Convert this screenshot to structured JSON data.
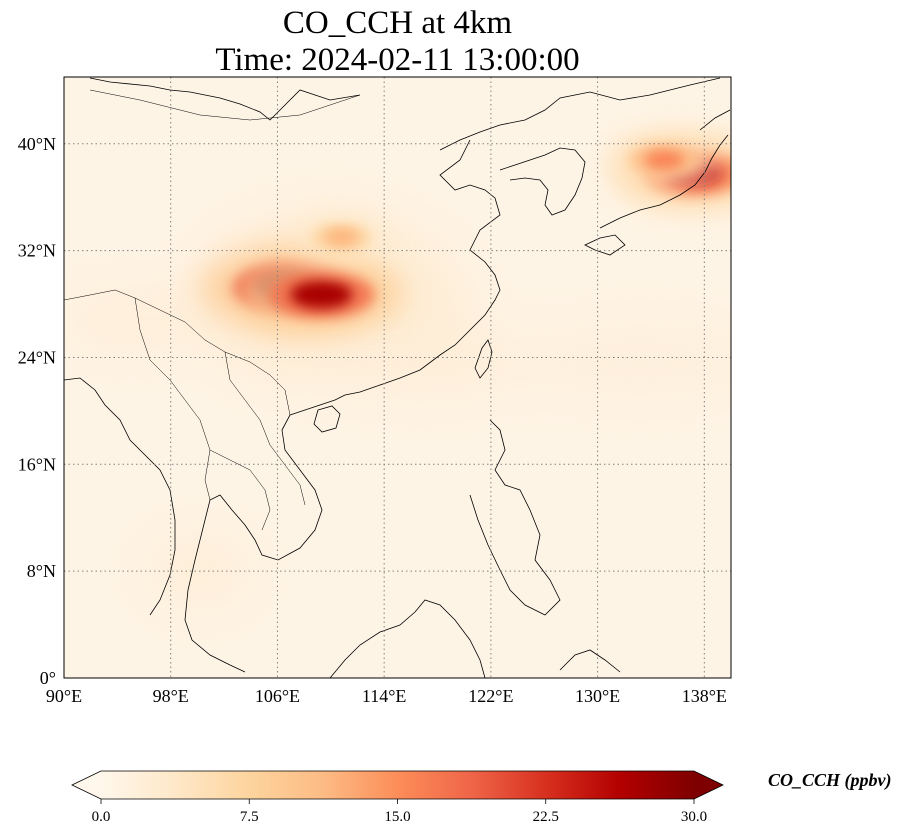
{
  "title": {
    "line1": "CO_CCH at 4km",
    "line2": "Time: 2024-02-11 13:00:00"
  },
  "map": {
    "lon_range": [
      90,
      140
    ],
    "lat_range": [
      0,
      45
    ],
    "lon_ticks": [
      {
        "value": 90,
        "label": "90°E"
      },
      {
        "value": 98,
        "label": "98°E"
      },
      {
        "value": 106,
        "label": "106°E"
      },
      {
        "value": 114,
        "label": "114°E"
      },
      {
        "value": 122,
        "label": "122°E"
      },
      {
        "value": 130,
        "label": "130°E"
      },
      {
        "value": 138,
        "label": "138°E"
      }
    ],
    "lat_ticks": [
      {
        "value": 0,
        "label": "0°"
      },
      {
        "value": 8,
        "label": "8°N"
      },
      {
        "value": 16,
        "label": "16°N"
      },
      {
        "value": 24,
        "label": "24°N"
      },
      {
        "value": 32,
        "label": "32°N"
      },
      {
        "value": 40,
        "label": "40°N"
      }
    ],
    "gridlines": true,
    "background_color": "#fef4e6",
    "plumes": [
      {
        "name": "sichuan-plume",
        "lon": 107.0,
        "lat": 29.2,
        "value": 30
      },
      {
        "name": "sichuan-plume-east",
        "lon": 109.3,
        "lat": 28.7,
        "value": 27
      },
      {
        "name": "sichuan-plume-tail",
        "lon": 110.8,
        "lat": 33.0,
        "value": 12
      },
      {
        "name": "japan-plume",
        "lon": 137.2,
        "lat": 37.8,
        "value": 25
      },
      {
        "name": "japan-plume-west",
        "lon": 135.0,
        "lat": 38.8,
        "value": 16
      }
    ]
  },
  "colorbar": {
    "title": "CO_CCH (ppbv)",
    "min": 0.0,
    "max": 30.0,
    "extend": "both",
    "colormap": [
      "#fff7ec",
      "#fee8c8",
      "#fdd49e",
      "#fdbb84",
      "#fc8d59",
      "#ef6548",
      "#d7301f",
      "#b30000",
      "#7f0000"
    ],
    "ticks": [
      {
        "value": 0.0,
        "label": "0.0"
      },
      {
        "value": 7.5,
        "label": "7.5"
      },
      {
        "value": 15.0,
        "label": "15.0"
      },
      {
        "value": 22.5,
        "label": "22.5"
      },
      {
        "value": 30.0,
        "label": "30.0"
      }
    ]
  }
}
